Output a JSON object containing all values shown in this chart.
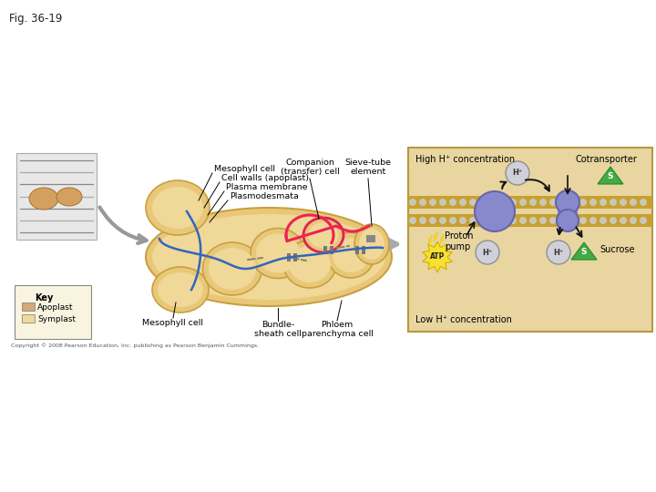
{
  "background_color": "#ffffff",
  "fig_label": "Fig. 36-19",
  "cell_color": "#e8c878",
  "cell_edge": "#c8a040",
  "cell_inner": "#f0d898",
  "left_labels": {
    "mesophyll_cell": "Mesophyll cell",
    "cell_walls": "Cell walls (apoplast)",
    "plasma_membrane": "Plasma membrane",
    "plasmodesmata": "Plasmodesmata",
    "companion": "Companion\n(transfer) cell",
    "sieve_tube": "Sieve-tube\nelement",
    "bundle_sheath": "Bundle-\nsheath cell",
    "phloem": "Phloem\nparenchyma cell",
    "mesophyll_bottom": "Mesophyll cell"
  },
  "key": {
    "title": "Key",
    "apoplast_color": "#d4a878",
    "symplast_color": "#f0d898",
    "apoplast_label": "Apoplast",
    "symplast_label": "Symplast"
  },
  "right_panel": {
    "bg": "#e8d5a0",
    "border": "#b89840",
    "mem_color": "#c8a030",
    "dot_color": "#c8c8b8",
    "protein_color": "#8888cc",
    "protein_edge": "#6666aa",
    "h_color": "#d0d0d8",
    "h_edge": "#909090",
    "s_color": "#44aa44",
    "s_edge": "#228822",
    "atp_color": "#f8e030",
    "atp_edge": "#d0b000",
    "arrow_color": "#111111",
    "labels": {
      "high_h": "High H⁺ concentration",
      "cotransporter": "Cotransporter",
      "proton_pump": "Proton\npump",
      "low_h": "Low H⁺ concentration",
      "sucrose": "Sucrose",
      "atp_label": "ATP"
    }
  },
  "copyright": "Copyright © 2008 Pearson Education, Inc. publishing as Pearson Benjamin Cummings."
}
